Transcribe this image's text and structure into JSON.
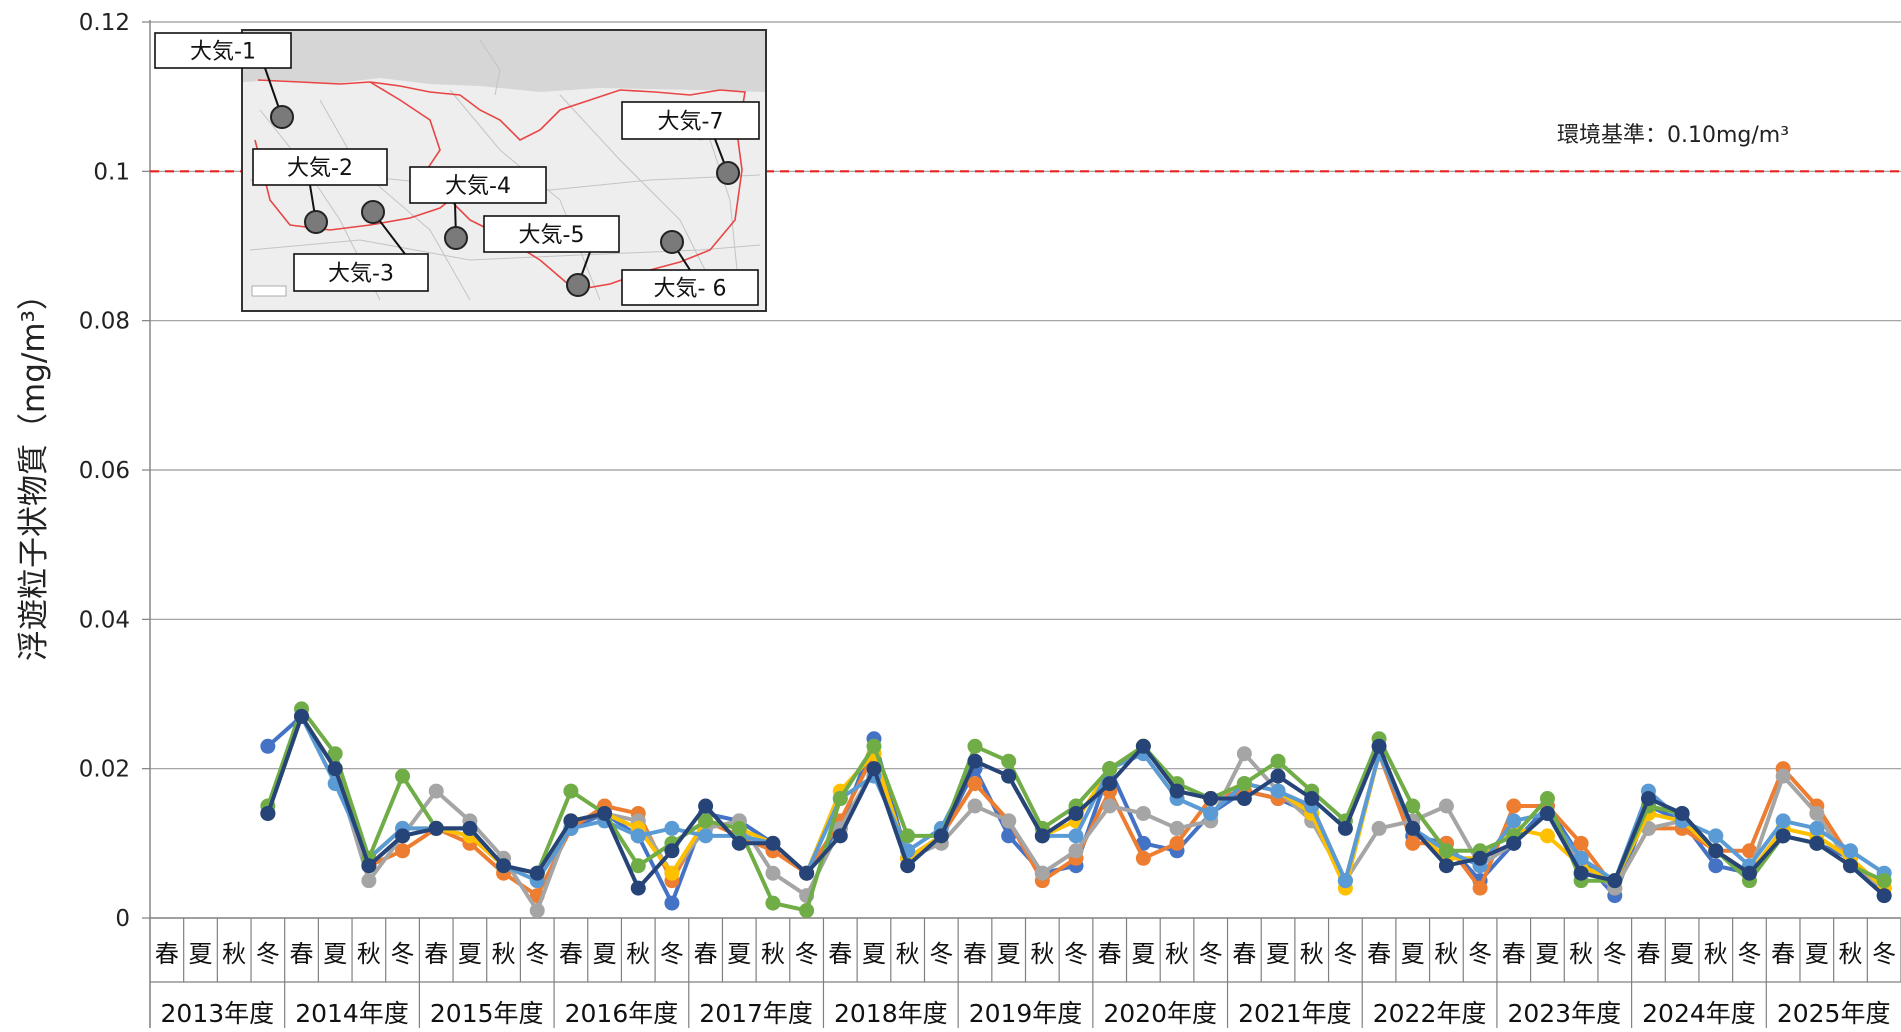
{
  "chart_data": {
    "type": "line",
    "ylabel": "浮遊粒子状物質（mg/m³）",
    "ylim": [
      0,
      0.12
    ],
    "yticks": [
      0,
      0.02,
      0.04,
      0.06,
      0.08,
      0.1,
      0.12
    ],
    "ytick_labels": [
      "0",
      "0.02",
      "0.04",
      "0.06",
      "0.08",
      "0.1",
      "0.12"
    ],
    "grid": true,
    "seasons": [
      "春",
      "夏",
      "秋",
      "冬",
      "春",
      "夏",
      "秋",
      "冬",
      "春",
      "夏",
      "秋",
      "冬",
      "春",
      "夏",
      "秋",
      "冬",
      "春",
      "夏",
      "秋",
      "冬",
      "春",
      "夏",
      "秋",
      "冬",
      "春",
      "夏",
      "秋",
      "冬",
      "春",
      "夏",
      "秋",
      "冬",
      "春",
      "夏",
      "秋",
      "冬",
      "春",
      "夏",
      "秋",
      "冬",
      "春",
      "夏",
      "秋",
      "冬",
      "春",
      "夏",
      "秋",
      "冬",
      "春",
      "夏",
      "秋",
      "冬"
    ],
    "years": [
      "2013年度",
      "2014年度",
      "2015年度",
      "2016年度",
      "2017年度",
      "2018年度",
      "2019年度",
      "2020年度",
      "2021年度",
      "2022年度",
      "2023年度",
      "2024年度",
      "2025年度"
    ],
    "reference_line": {
      "value": 0.1,
      "label": "環境基準：0.10mg/m³",
      "color": "#e8221c"
    },
    "series": [
      {
        "color": "#4472c4",
        "values": [
          null,
          null,
          null,
          0.023,
          0.027,
          0.02,
          0.007,
          0.011,
          0.012,
          0.011,
          0.007,
          0.006,
          0.012,
          0.014,
          0.011,
          0.002,
          0.014,
          0.013,
          0.01,
          0.006,
          0.012,
          0.024,
          0.008,
          0.011,
          0.02,
          0.011,
          0.006,
          0.007,
          0.02,
          0.01,
          0.009,
          0.014,
          0.017,
          0.016,
          0.014,
          0.005,
          0.022,
          0.011,
          0.01,
          0.005,
          0.01,
          0.015,
          0.008,
          0.003,
          0.015,
          0.013,
          0.007,
          0.006,
          0.011,
          0.01,
          0.008,
          0.003
        ]
      },
      {
        "color": "#ed7d31",
        "values": [
          null,
          null,
          null,
          0.014,
          0.027,
          0.02,
          0.007,
          0.009,
          0.012,
          0.01,
          0.006,
          0.003,
          0.012,
          0.015,
          0.014,
          0.005,
          0.013,
          0.011,
          0.009,
          0.006,
          0.013,
          0.022,
          0.008,
          0.011,
          0.018,
          0.013,
          0.005,
          0.008,
          0.017,
          0.008,
          0.01,
          0.016,
          0.017,
          0.016,
          0.015,
          0.005,
          0.022,
          0.01,
          0.01,
          0.004,
          0.015,
          0.015,
          0.01,
          0.004,
          0.012,
          0.012,
          0.009,
          0.009,
          0.02,
          0.015,
          0.008,
          0.004
        ]
      },
      {
        "color": "#a5a5a5",
        "values": [
          null,
          null,
          null,
          0.014,
          0.027,
          0.02,
          0.005,
          0.011,
          0.017,
          0.013,
          0.008,
          0.001,
          0.013,
          0.014,
          0.013,
          0.006,
          0.012,
          0.013,
          0.006,
          0.003,
          0.012,
          0.02,
          0.008,
          0.01,
          0.015,
          0.013,
          0.006,
          0.009,
          0.015,
          0.014,
          0.012,
          0.013,
          0.022,
          0.017,
          0.013,
          0.005,
          0.012,
          0.013,
          0.015,
          0.007,
          0.01,
          0.014,
          0.007,
          0.004,
          0.012,
          0.013,
          0.009,
          0.006,
          0.019,
          0.014,
          0.007,
          0.004
        ]
      },
      {
        "color": "#ffc000",
        "values": [
          null,
          null,
          null,
          0.014,
          0.027,
          0.02,
          0.008,
          0.012,
          0.012,
          0.011,
          0.007,
          0.005,
          0.013,
          0.014,
          0.012,
          0.006,
          0.013,
          0.012,
          0.01,
          0.006,
          0.017,
          0.022,
          0.008,
          0.011,
          0.021,
          0.019,
          0.011,
          0.013,
          0.02,
          0.023,
          0.017,
          0.016,
          0.018,
          0.017,
          0.014,
          0.004,
          0.022,
          0.012,
          0.008,
          0.008,
          0.012,
          0.011,
          0.007,
          0.005,
          0.014,
          0.013,
          0.009,
          0.006,
          0.012,
          0.011,
          0.008,
          0.004
        ]
      },
      {
        "color": "#5b9bd5",
        "values": [
          null,
          null,
          null,
          0.014,
          0.027,
          0.018,
          0.008,
          0.012,
          0.012,
          0.012,
          0.007,
          0.005,
          0.012,
          0.013,
          0.011,
          0.012,
          0.011,
          0.011,
          0.01,
          0.006,
          0.016,
          0.019,
          0.009,
          0.012,
          0.021,
          0.019,
          0.011,
          0.011,
          0.02,
          0.022,
          0.016,
          0.014,
          0.018,
          0.017,
          0.015,
          0.005,
          0.022,
          0.012,
          0.009,
          0.007,
          0.013,
          0.014,
          0.008,
          0.005,
          0.017,
          0.013,
          0.011,
          0.007,
          0.013,
          0.012,
          0.009,
          0.006
        ]
      },
      {
        "color": "#70ad47",
        "values": [
          null,
          null,
          null,
          0.015,
          0.028,
          0.022,
          0.008,
          0.019,
          0.012,
          0.012,
          0.007,
          0.006,
          0.017,
          0.014,
          0.007,
          0.01,
          0.013,
          0.012,
          0.002,
          0.001,
          0.016,
          0.023,
          0.011,
          0.011,
          0.023,
          0.021,
          0.012,
          0.015,
          0.02,
          0.023,
          0.018,
          0.016,
          0.018,
          0.021,
          0.017,
          0.013,
          0.024,
          0.015,
          0.009,
          0.009,
          0.011,
          0.016,
          0.005,
          0.005,
          0.015,
          0.014,
          0.009,
          0.005,
          0.011,
          0.01,
          0.007,
          0.005
        ]
      },
      {
        "color": "#264478",
        "values": [
          null,
          null,
          null,
          0.014,
          0.027,
          0.02,
          0.007,
          0.011,
          0.012,
          0.012,
          0.007,
          0.006,
          0.013,
          0.014,
          0.004,
          0.009,
          0.015,
          0.01,
          0.01,
          0.006,
          0.011,
          0.02,
          0.007,
          0.011,
          0.021,
          0.019,
          0.011,
          0.014,
          0.018,
          0.023,
          0.017,
          0.016,
          0.016,
          0.019,
          0.016,
          0.012,
          0.023,
          0.012,
          0.007,
          0.008,
          0.01,
          0.014,
          0.006,
          0.005,
          0.016,
          0.014,
          0.009,
          0.006,
          0.011,
          0.01,
          0.007,
          0.003
        ]
      }
    ]
  },
  "inset_map": {
    "labels": [
      "大気-1",
      "大気-2",
      "大気-3",
      "大気-4",
      "大気-5",
      "大気- 6",
      "大気-7"
    ]
  }
}
